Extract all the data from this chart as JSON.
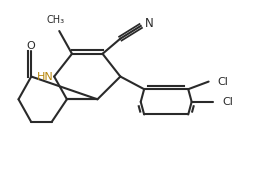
{
  "bg_color": "#ffffff",
  "line_color": "#2a2a2a",
  "hn_color": "#b8860b",
  "line_width": 1.5,
  "figsize": [
    2.56,
    1.91
  ],
  "dpi": 100,
  "xlim": [
    0,
    10
  ],
  "ylim": [
    0,
    7.5
  ]
}
